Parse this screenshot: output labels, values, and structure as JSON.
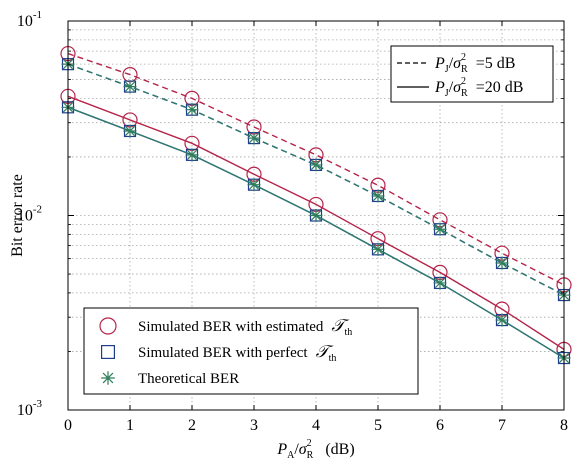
{
  "chart_data": {
    "type": "line",
    "y_scale": "log",
    "x": [
      0,
      1,
      2,
      3,
      4,
      5,
      6,
      7,
      8
    ],
    "xlim": [
      0,
      8
    ],
    "ylim": [
      0.001,
      0.1
    ],
    "x_ticks": [
      "0",
      "1",
      "2",
      "3",
      "4",
      "5",
      "6",
      "7",
      "8"
    ],
    "y_ticks": [
      {
        "base": "10",
        "exp": "-1",
        "value": 0.1
      },
      {
        "base": "10",
        "exp": "-2",
        "value": 0.01
      },
      {
        "base": "10",
        "exp": "-3",
        "value": 0.001
      }
    ],
    "ylabel": "Bit error rate",
    "xlabel": {
      "main": "P",
      "sub": "A",
      "slash": "/",
      "sigma": "σ",
      "sigma_sub": "R",
      "sigma_sup": "2",
      "unit": "(dB)"
    },
    "grid": true,
    "colors": {
      "estimated": "#b5244a",
      "perfect": "#1f3f8c",
      "theoretical": "#2e7d5b",
      "line_perfect": "#3b5b8f",
      "line_theoretical": "#2e7a70"
    },
    "style_legend": {
      "position": "top-right",
      "entries": [
        {
          "linestyle": "dashed",
          "p": "P",
          "p_sub": "J",
          "slash": "/",
          "sigma": "σ",
          "sigma_sub": "R",
          "sigma_sup": "2",
          "value": "=5 dB"
        },
        {
          "linestyle": "solid",
          "p": "P",
          "p_sub": "J",
          "slash": "/",
          "sigma": "σ",
          "sigma_sub": "R",
          "sigma_sup": "2",
          "value": "=20 dB"
        }
      ]
    },
    "marker_legend": {
      "position": "bottom-left",
      "entries": [
        {
          "marker": "circle",
          "text": "Simulated BER with estimated",
          "symbol": "𝒯",
          "symbol_sub": "th"
        },
        {
          "marker": "square",
          "text": "Simulated BER with perfect",
          "symbol": "𝒯",
          "symbol_sub": "th"
        },
        {
          "marker": "asterisk",
          "text": "Theoretical BER",
          "symbol": "",
          "symbol_sub": ""
        }
      ]
    },
    "series": [
      {
        "kind": "estimated",
        "group": "5 dB",
        "linestyle": "dashed",
        "marker": "circle",
        "values": [
          0.068,
          0.053,
          0.04,
          0.0285,
          0.0205,
          0.0143,
          0.0095,
          0.0064,
          0.0044
        ]
      },
      {
        "kind": "perfect",
        "group": "5 dB",
        "linestyle": "dashed",
        "marker": "square",
        "values": [
          0.06,
          0.046,
          0.035,
          0.025,
          0.0182,
          0.0126,
          0.0085,
          0.0057,
          0.0039
        ]
      },
      {
        "kind": "theoretical",
        "group": "5 dB",
        "linestyle": "dashed",
        "marker": "asterisk",
        "values": [
          0.06,
          0.046,
          0.035,
          0.025,
          0.0182,
          0.0126,
          0.0085,
          0.0057,
          0.0039
        ]
      },
      {
        "kind": "estimated",
        "group": "20 dB",
        "linestyle": "solid",
        "marker": "circle",
        "values": [
          0.041,
          0.031,
          0.0235,
          0.0163,
          0.0114,
          0.0076,
          0.0051,
          0.0033,
          0.00205
        ]
      },
      {
        "kind": "perfect",
        "group": "20 dB",
        "linestyle": "solid",
        "marker": "square",
        "values": [
          0.036,
          0.0272,
          0.0205,
          0.0144,
          0.01,
          0.0067,
          0.0045,
          0.0029,
          0.00185
        ]
      },
      {
        "kind": "theoretical",
        "group": "20 dB",
        "linestyle": "solid",
        "marker": "asterisk",
        "values": [
          0.036,
          0.0272,
          0.0205,
          0.0144,
          0.01,
          0.0067,
          0.0045,
          0.0029,
          0.00185
        ]
      }
    ]
  }
}
